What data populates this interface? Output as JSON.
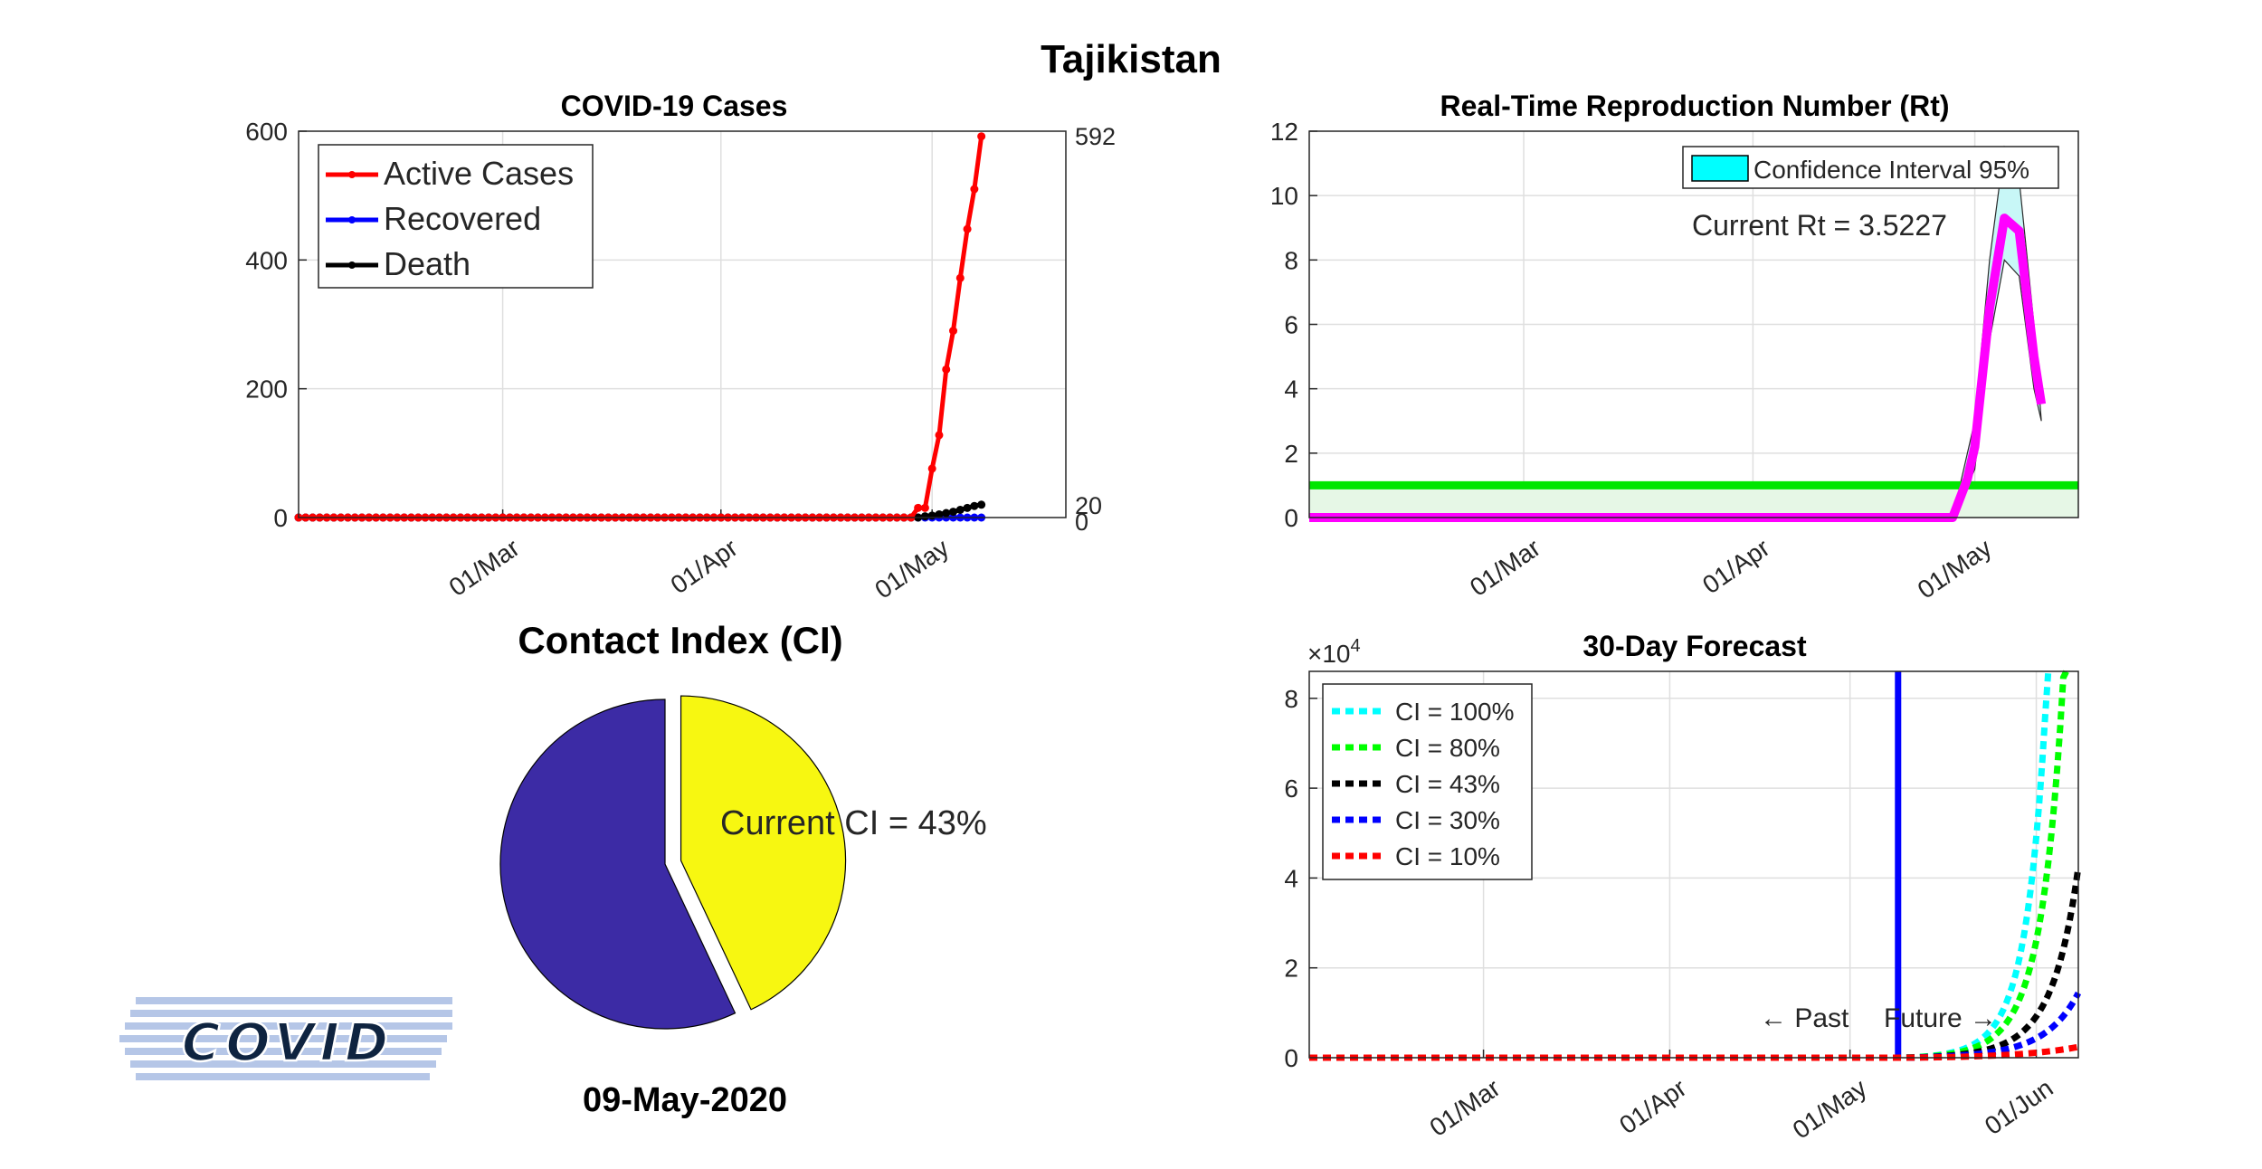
{
  "page": {
    "country": "Tajikistan",
    "date": "09-May-2020"
  },
  "logo": {
    "text": "COVID"
  },
  "chart_data": [
    {
      "id": "cases",
      "type": "line",
      "title": "COVID-19 Cases",
      "x_start": "2020-02-01",
      "x_end": "2020-05-20",
      "x_ticks": [
        "01/Mar",
        "01/Apr",
        "01/May"
      ],
      "ylim": [
        0,
        600
      ],
      "y_ticks": [
        "0",
        "200",
        "400",
        "600"
      ],
      "grid": true,
      "legend_position": "top-left",
      "end_labels": {
        "active": "592",
        "death": "20",
        "recovered": "0"
      },
      "series": [
        {
          "name": "Active Cases",
          "color": "#ff0000",
          "points": [
            [
              "2020-02-01",
              0
            ],
            [
              "2020-04-28",
              0
            ],
            [
              "2020-04-29",
              15
            ],
            [
              "2020-04-30",
              15
            ],
            [
              "2020-05-01",
              76
            ],
            [
              "2020-05-02",
              128
            ],
            [
              "2020-05-03",
              230
            ],
            [
              "2020-05-04",
              290
            ],
            [
              "2020-05-05",
              372
            ],
            [
              "2020-05-06",
              448
            ],
            [
              "2020-05-07",
              510
            ],
            [
              "2020-05-08",
              592
            ]
          ]
        },
        {
          "name": "Recovered",
          "color": "#0000ff",
          "points": [
            [
              "2020-02-01",
              0
            ],
            [
              "2020-05-08",
              0
            ]
          ]
        },
        {
          "name": "Death",
          "color": "#000000",
          "points": [
            [
              "2020-02-01",
              0
            ],
            [
              "2020-04-29",
              0
            ],
            [
              "2020-04-30",
              2
            ],
            [
              "2020-05-01",
              3
            ],
            [
              "2020-05-02",
              5
            ],
            [
              "2020-05-03",
              7
            ],
            [
              "2020-05-04",
              9
            ],
            [
              "2020-05-05",
              12
            ],
            [
              "2020-05-06",
              15
            ],
            [
              "2020-05-07",
              18
            ],
            [
              "2020-05-08",
              20
            ]
          ]
        }
      ]
    },
    {
      "id": "rt",
      "type": "line",
      "title": "Real-Time Reproduction Number (Rt)",
      "x_start": "2020-02-01",
      "x_end": "2020-05-15",
      "x_ticks": [
        "01/Mar",
        "01/Apr",
        "01/May"
      ],
      "ylim": [
        0,
        12
      ],
      "y_ticks": [
        "0",
        "2",
        "4",
        "6",
        "8",
        "10",
        "12"
      ],
      "grid": true,
      "legend_position": "top-right",
      "legend": [
        "Confidence Interval 95%"
      ],
      "annotation": "Current Rt = 3.5227",
      "threshold": 1,
      "series": [
        {
          "name": "Rt",
          "color": "#ff00ff",
          "points": [
            [
              "2020-02-01",
              0
            ],
            [
              "2020-04-28",
              0
            ],
            [
              "2020-04-30",
              1.2
            ],
            [
              "2020-05-01",
              2.2
            ],
            [
              "2020-05-03",
              6.5
            ],
            [
              "2020-05-05",
              9.3
            ],
            [
              "2020-05-07",
              8.9
            ],
            [
              "2020-05-09",
              5.0
            ],
            [
              "2020-05-10",
              3.5227
            ]
          ]
        }
      ],
      "ci_upper": [
        [
          "2020-04-28",
          0
        ],
        [
          "2020-05-01",
          3.0
        ],
        [
          "2020-05-03",
          8.0
        ],
        [
          "2020-05-05",
          11.5
        ],
        [
          "2020-05-07",
          10.5
        ],
        [
          "2020-05-09",
          6.0
        ],
        [
          "2020-05-10",
          3.0
        ]
      ],
      "ci_lower": [
        [
          "2020-04-28",
          0
        ],
        [
          "2020-05-01",
          1.5
        ],
        [
          "2020-05-03",
          5.5
        ],
        [
          "2020-05-05",
          8.0
        ],
        [
          "2020-05-07",
          7.5
        ],
        [
          "2020-05-09",
          4.0
        ],
        [
          "2020-05-10",
          3.0
        ]
      ]
    },
    {
      "id": "ci",
      "type": "pie",
      "title": "Contact Index (CI)",
      "annotation": "Current CI = 43%",
      "values": [
        43,
        57
      ],
      "colors": [
        "#f7f711",
        "#3c2ba5"
      ],
      "explode": [
        true,
        false
      ]
    },
    {
      "id": "forecast",
      "type": "line",
      "title": "30-Day Forecast",
      "x_start": "2020-02-01",
      "x_end": "2020-06-08",
      "x_ticks": [
        "01/Mar",
        "01/Apr",
        "01/May",
        "01/Jun"
      ],
      "ylim": [
        0,
        8.6
      ],
      "y_ticks": [
        "0",
        "2",
        "4",
        "6",
        "8"
      ],
      "y_exponent_base": "×10",
      "y_exponent_power": "4",
      "grid": true,
      "legend_position": "top-left",
      "today": "2020-05-09",
      "past_label": "← Past",
      "future_label": "Future →",
      "series": [
        {
          "name": "CI = 100%",
          "color": "#00ffff",
          "exp_k": 0.38
        },
        {
          "name": "CI = 80%",
          "color": "#00ff00",
          "exp_k": 0.34
        },
        {
          "name": "CI = 43%",
          "color": "#000000",
          "exp_k": 0.21
        },
        {
          "name": "CI = 30%",
          "color": "#0000ff",
          "exp_k": 0.16
        },
        {
          "name": "CI = 10%",
          "color": "#ff0000",
          "exp_k": 0.06
        }
      ],
      "forecast_base": 0.06,
      "forecast_end_values": [
        8.6,
        8.6,
        4.3,
        1.5,
        0.3
      ]
    }
  ]
}
